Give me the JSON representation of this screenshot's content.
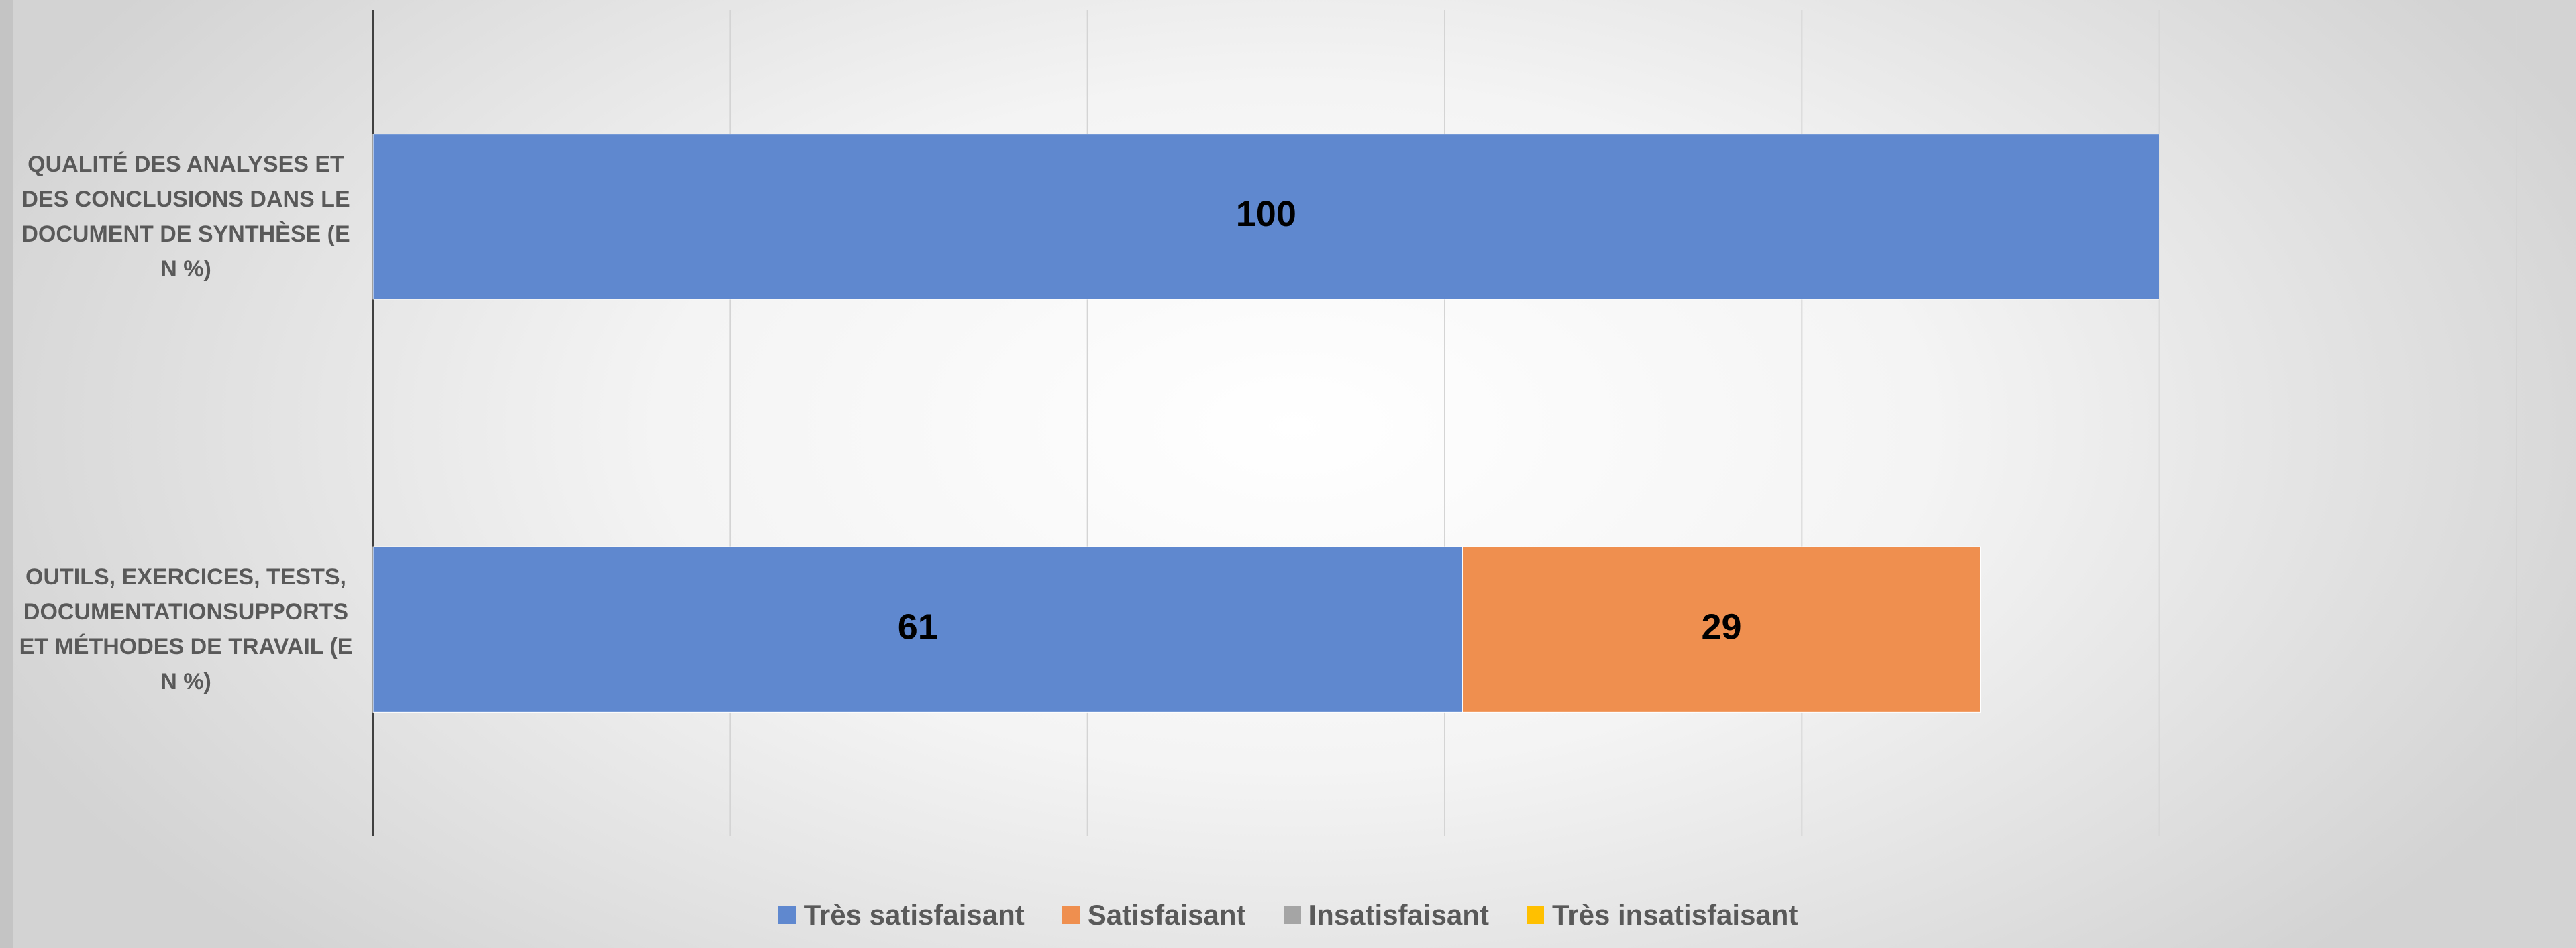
{
  "chart_data": {
    "type": "stacked_barh",
    "categories": [
      "QUALITÉ DES ANALYSES ET DES CONCLUSIONS DANS LE DOCUMENT DE SYNTHÈSE (EN %)",
      "OUTILS, EXERCICES, TESTS, DOCUMENTATIONSUPPORTS ET MÉTHODES DE TRAVAIL (EN %)"
    ],
    "series": [
      {
        "name": "Très satisfaisant",
        "color": "#5f88cf",
        "values": [
          100,
          61
        ]
      },
      {
        "name": "Satisfaisant",
        "color": "#ef8f4f",
        "values": [
          null,
          29
        ]
      },
      {
        "name": "Insatisfaisant",
        "color": "#a5a5a5",
        "values": [
          null,
          null
        ]
      },
      {
        "name": "Très insatisfaisant",
        "color": "#ffc000",
        "values": [
          null,
          null
        ]
      }
    ],
    "xlim": [
      0,
      120
    ],
    "xticks": [
      0,
      20,
      40,
      60,
      80,
      100,
      120
    ],
    "tick_labels": false,
    "grid": true,
    "legend": "bottom"
  }
}
